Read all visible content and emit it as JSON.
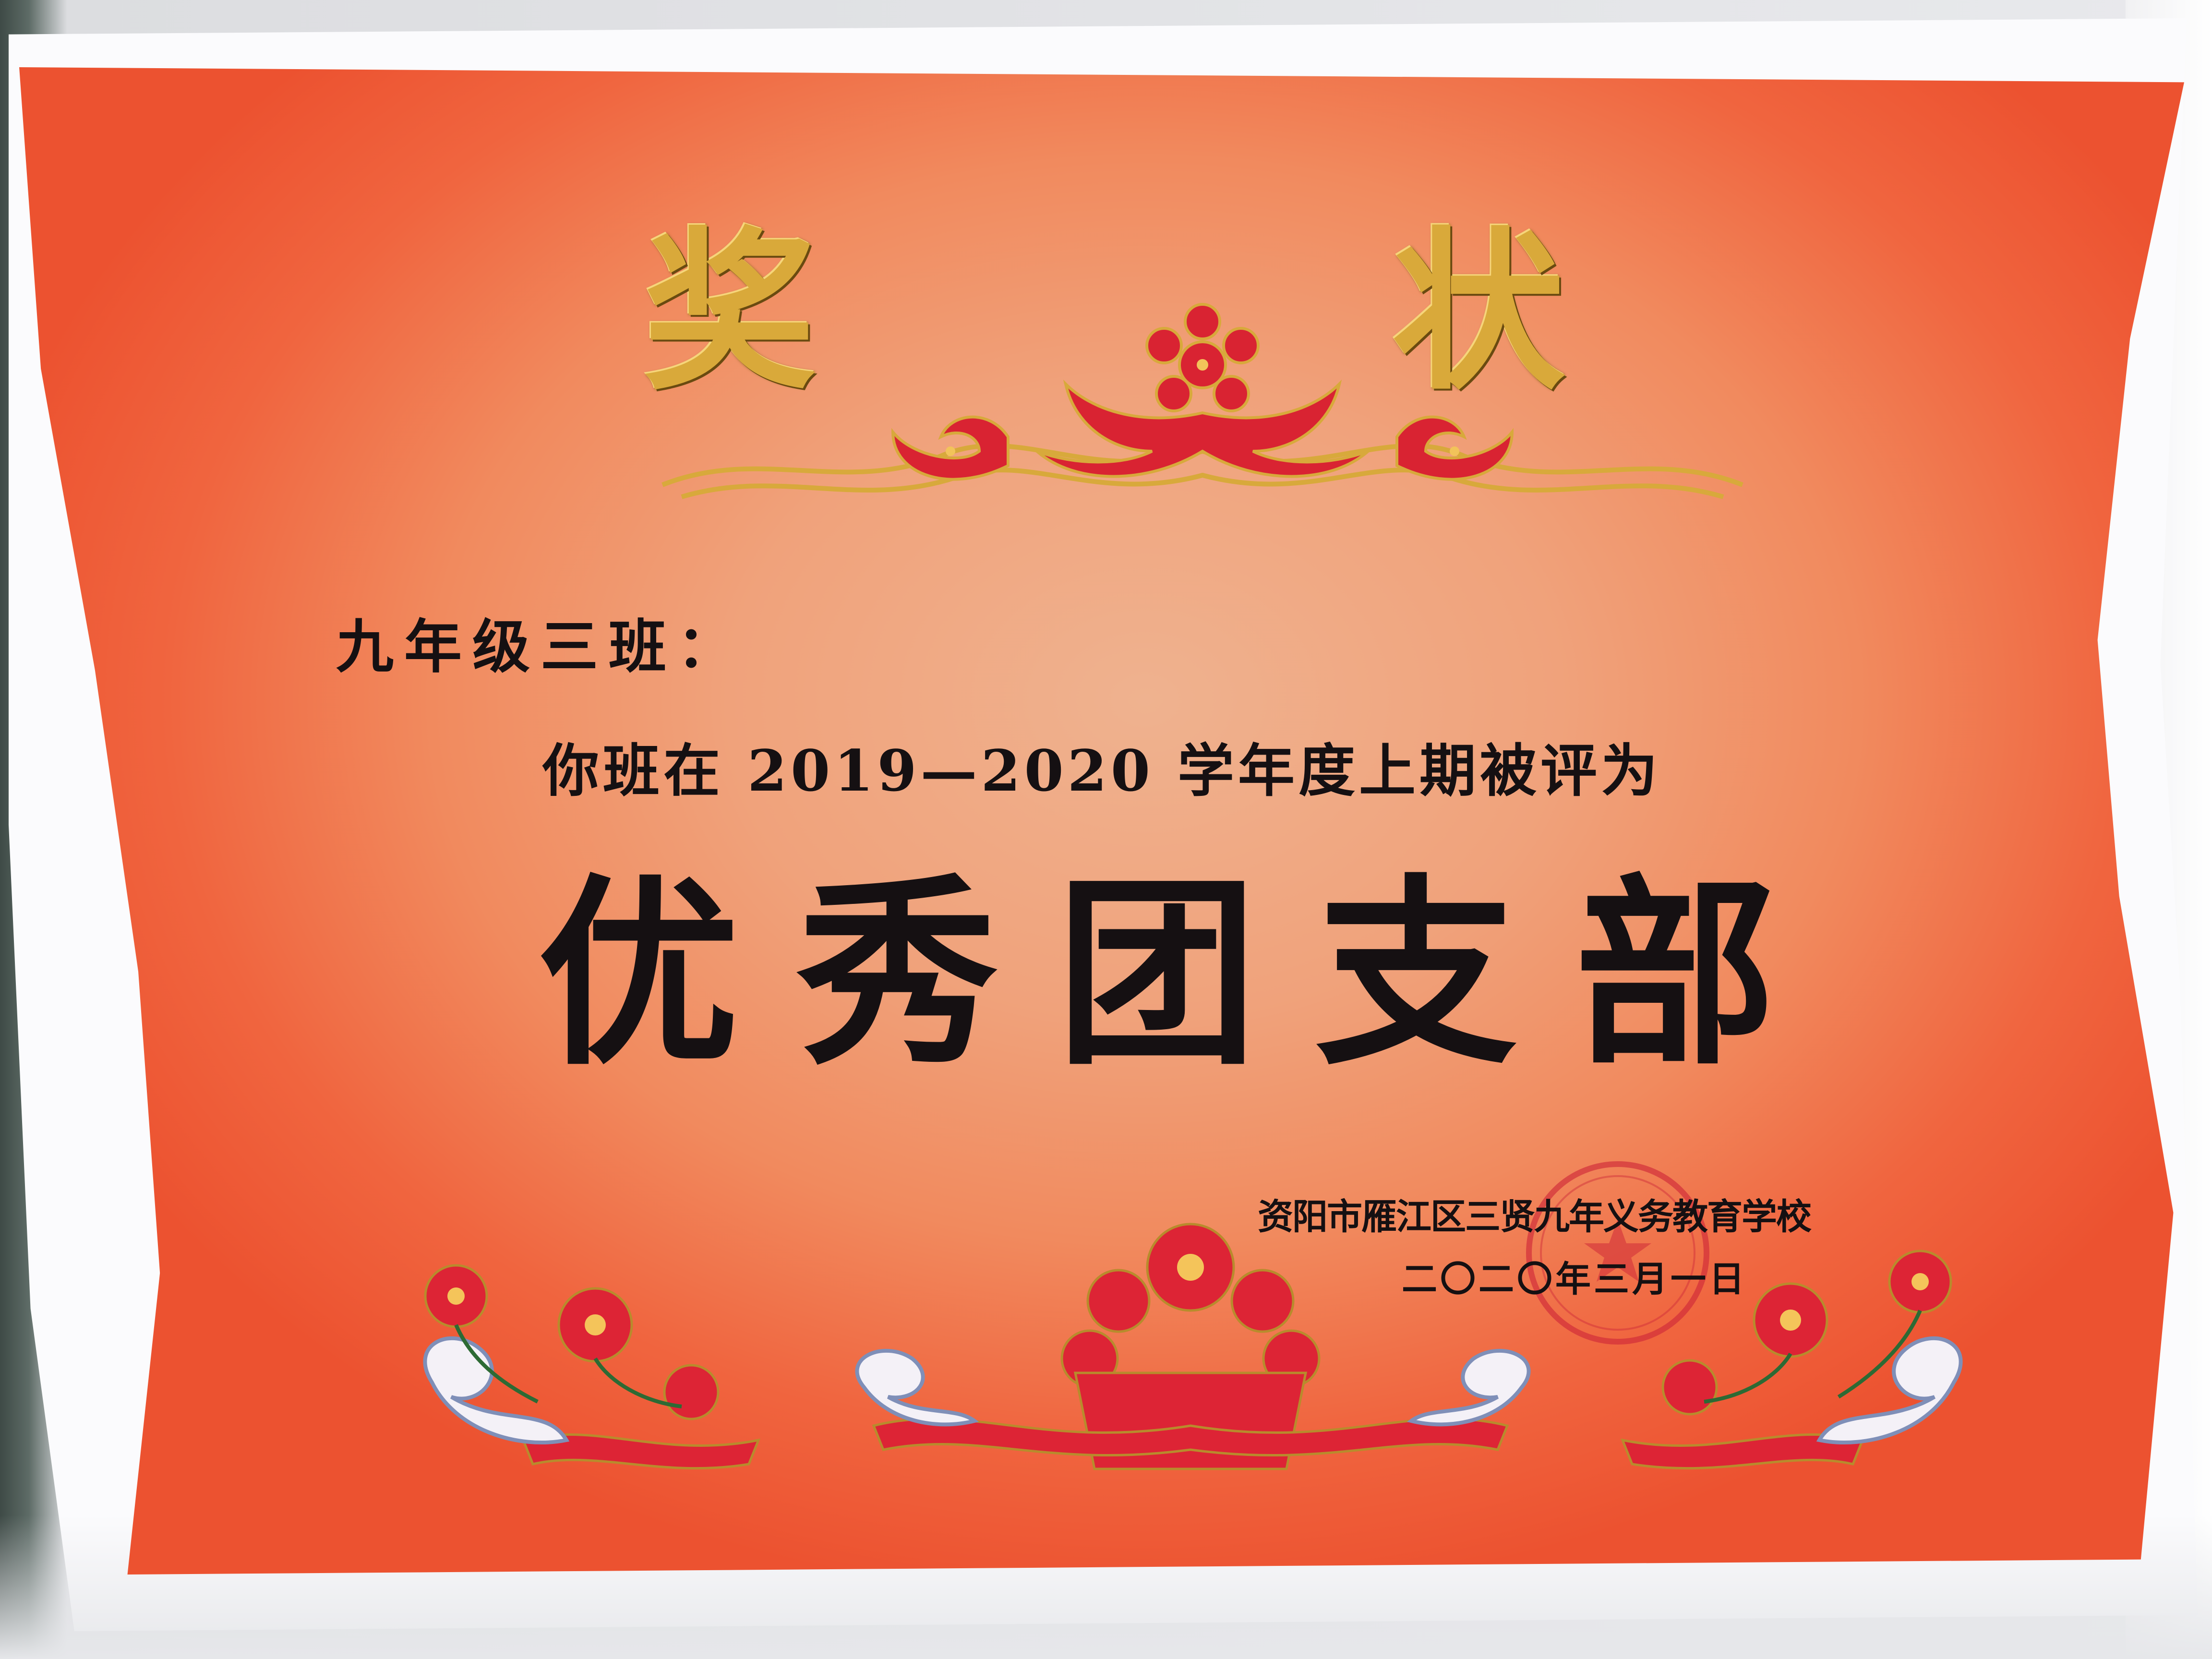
{
  "certificate": {
    "title_chars": [
      "奖",
      "状"
    ],
    "recipient": "九年级三班：",
    "body_line": "你班在 2019—2020 学年度上期被评为",
    "award": "优秀团支部",
    "issuer": "资阳市雁江区三贤九年义务教育学校",
    "date": "二〇二〇年三月一日"
  },
  "colors": {
    "paper_orange": "#f0653f",
    "gold_foil": "#d9a93a",
    "ornament_red": "#d92332",
    "ink_black": "#151012"
  }
}
